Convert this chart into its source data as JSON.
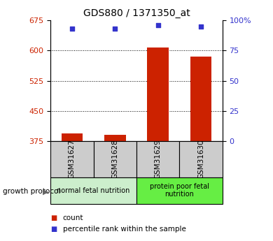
{
  "title": "GDS880 / 1371350_at",
  "samples": [
    "GSM31627",
    "GSM31628",
    "GSM31629",
    "GSM31630"
  ],
  "bar_values": [
    393,
    390,
    607,
    585
  ],
  "percentile_values": [
    93,
    93,
    96,
    95
  ],
  "ylim_left": [
    375,
    675
  ],
  "ylim_right": [
    0,
    100
  ],
  "yticks_left": [
    375,
    450,
    525,
    600,
    675
  ],
  "yticks_right": [
    0,
    25,
    50,
    75,
    100
  ],
  "bar_color": "#cc2200",
  "point_color": "#3333cc",
  "bar_width": 0.5,
  "groups": [
    {
      "label": "normal fetal nutrition",
      "samples": [
        0,
        1
      ],
      "color": "#cceecc"
    },
    {
      "label": "protein poor fetal\nnutrition",
      "samples": [
        2,
        3
      ],
      "color": "#66ee44"
    }
  ],
  "group_label": "growth protocol",
  "grid_lines": [
    600,
    525,
    450
  ],
  "tick_label_color_left": "#cc2200",
  "tick_label_color_right": "#3333cc",
  "bg_sample_box": "#cccccc",
  "title_fontsize": 10
}
